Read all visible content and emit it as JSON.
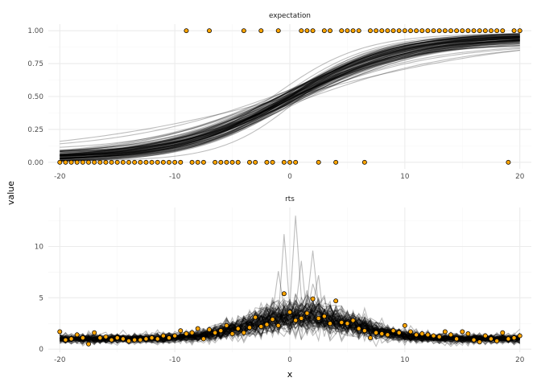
{
  "chart_data": {
    "type": "line",
    "xlabel": "x",
    "ylabel": "value",
    "colors": {
      "observed_fill": "#ffa500",
      "observed_stroke": "#000000",
      "draws": "#000000",
      "grid": "#ebebeb"
    },
    "grid": true,
    "legend": "none",
    "x_ticks": [
      -20,
      -10,
      0,
      10,
      20
    ],
    "facets": [
      {
        "title": "expectation",
        "xlim": [
          -21,
          21
        ],
        "ylim": [
          -0.05,
          1.05
        ],
        "y_ticks": [
          0,
          0.25,
          0.5,
          0.75,
          1
        ],
        "y_tick_labels": [
          "0.00",
          "0.25",
          "0.50",
          "0.75",
          "1.00"
        ],
        "draws": {
          "model": "logistic",
          "count": 100,
          "median_curve": {
            "lower": 0.025,
            "upper": 0.97,
            "midpoint": 0.5,
            "slope": 0.2
          },
          "lower_asymptote_range": [
            0.0,
            0.12
          ],
          "upper_asymptote_range": [
            0.88,
            0.99
          ]
        },
        "points": {
          "x": [
            -20,
            -19.5,
            -19,
            -18.5,
            -18,
            -17.5,
            -17,
            -16.5,
            -16,
            -15.5,
            -15,
            -14.5,
            -14,
            -13.5,
            -13,
            -12.5,
            -12,
            -11.5,
            -11,
            -10.5,
            -10,
            -9.5,
            -9,
            -8.5,
            -8,
            -7.5,
            -7,
            -6.5,
            -6,
            -5.5,
            -5,
            -4.5,
            -4,
            -3.5,
            -3,
            -2.5,
            -2,
            -1.5,
            -1,
            -0.5,
            0,
            0.5,
            1,
            1.5,
            2,
            2.5,
            3,
            3.5,
            4,
            4.5,
            5,
            5.5,
            6,
            6.5,
            7,
            7.5,
            8,
            8.5,
            9,
            9.5,
            10,
            10.5,
            11,
            11.5,
            12,
            12.5,
            13,
            13.5,
            14,
            14.5,
            15,
            15.5,
            16,
            16.5,
            17,
            17.5,
            18,
            18.5,
            19,
            19.5,
            20
          ],
          "y": [
            0,
            0,
            0,
            0,
            0,
            0,
            0,
            0,
            0,
            0,
            0,
            0,
            0,
            0,
            0,
            0,
            0,
            0,
            0,
            0,
            0,
            0,
            1,
            0,
            0,
            0,
            1,
            0,
            0,
            0,
            0,
            0,
            1,
            0,
            0,
            1,
            0,
            0,
            1,
            0,
            0,
            0,
            1,
            1,
            1,
            0,
            1,
            1,
            0,
            1,
            1,
            1,
            1,
            0,
            1,
            1,
            1,
            1,
            1,
            1,
            1,
            1,
            1,
            1,
            1,
            1,
            1,
            1,
            1,
            1,
            1,
            1,
            1,
            1,
            1,
            1,
            1,
            1,
            0,
            1,
            1
          ]
        }
      },
      {
        "title": "rts",
        "xlim": [
          -21,
          21
        ],
        "ylim": [
          -0.3,
          13.8
        ],
        "y_ticks": [
          0,
          5,
          10
        ],
        "y_tick_labels": [
          "0",
          "5",
          "10"
        ],
        "draws": {
          "model": "noisy-peak",
          "count": 100,
          "baseline": 1.0,
          "peak_height": 2.1,
          "peak_center": 1.0,
          "peak_width": 4.5,
          "max_draw_value": 13.0
        },
        "points": {
          "x": [
            -20,
            -19.5,
            -19,
            -18.5,
            -18,
            -17.5,
            -17,
            -16.5,
            -16,
            -15.5,
            -15,
            -14.5,
            -14,
            -13.5,
            -13,
            -12.5,
            -12,
            -11.5,
            -11,
            -10.5,
            -10,
            -9.5,
            -9,
            -8.5,
            -8,
            -7.5,
            -7,
            -6.5,
            -6,
            -5.5,
            -5,
            -4.5,
            -4,
            -3.5,
            -3,
            -2.5,
            -2,
            -1.5,
            -1,
            -0.5,
            0,
            0.5,
            1,
            1.5,
            2,
            2.5,
            3,
            3.5,
            4,
            4.5,
            5,
            5.5,
            6,
            6.5,
            7,
            7.5,
            8,
            8.5,
            9,
            9.5,
            10,
            10.5,
            11,
            11.5,
            12,
            12.5,
            13,
            13.5,
            14,
            14.5,
            15,
            15.5,
            16,
            16.5,
            17,
            17.5,
            18,
            18.5,
            19,
            19.5,
            20
          ],
          "y": [
            1.7,
            0.9,
            1.0,
            1.4,
            1.1,
            0.5,
            1.6,
            1.1,
            1.2,
            0.9,
            1.1,
            1.0,
            0.8,
            0.9,
            0.9,
            1.0,
            1.1,
            1.0,
            1.3,
            1.1,
            1.3,
            1.8,
            1.5,
            1.6,
            2.0,
            1.0,
            1.9,
            1.6,
            1.8,
            2.3,
            1.5,
            2.0,
            1.6,
            2.1,
            3.1,
            2.2,
            2.4,
            2.9,
            2.3,
            5.4,
            3.6,
            2.8,
            3.0,
            3.5,
            4.9,
            3.0,
            3.2,
            2.5,
            4.7,
            2.6,
            2.5,
            2.8,
            2.0,
            1.8,
            1.1,
            1.6,
            1.5,
            1.4,
            1.8,
            1.6,
            2.3,
            1.7,
            1.4,
            1.5,
            1.4,
            1.3,
            1.2,
            1.7,
            1.4,
            1.0,
            1.7,
            1.5,
            0.9,
            0.7,
            1.3,
            1.0,
            0.8,
            1.6,
            1.0,
            1.1,
            1.3
          ]
        }
      }
    ]
  }
}
